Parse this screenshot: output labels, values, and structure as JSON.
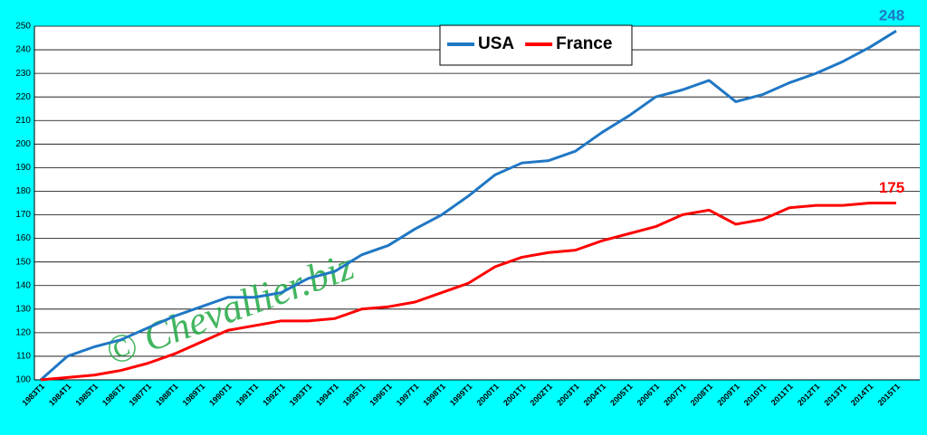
{
  "chart_data": {
    "type": "line",
    "categories": [
      "1983T1",
      "1984T1",
      "1985T1",
      "1986T1",
      "1987T1",
      "1988T1",
      "1989T1",
      "1990T1",
      "1991T1",
      "1992T1",
      "1993T1",
      "1994T1",
      "1995T1",
      "1996T1",
      "1997T1",
      "1998T1",
      "1999T1",
      "2000T1",
      "2001T1",
      "2002T1",
      "2003T1",
      "2004T1",
      "2005T1",
      "2006T1",
      "2007T1",
      "2008T1",
      "2009T1",
      "2010T1",
      "2011T1",
      "2012T1",
      "2013T1",
      "2014T1",
      "2015T1"
    ],
    "series": [
      {
        "name": "USA",
        "color": "#1f77c4",
        "values": [
          100,
          110,
          114,
          117,
          122,
          127,
          131,
          135,
          135,
          137,
          143,
          146,
          153,
          157,
          164,
          170,
          178,
          187,
          192,
          193,
          197,
          205,
          212,
          220,
          223,
          227,
          218,
          221,
          226,
          230,
          235,
          241,
          248
        ]
      },
      {
        "name": "France",
        "color": "#ff0000",
        "values": [
          100,
          101,
          102,
          104,
          107,
          111,
          116,
          121,
          123,
          125,
          125,
          126,
          130,
          131,
          133,
          137,
          141,
          148,
          152,
          154,
          155,
          159,
          162,
          165,
          170,
          172,
          166,
          168,
          173,
          174,
          174,
          175,
          175
        ]
      }
    ],
    "ylim": [
      100,
      250
    ],
    "yticks": [
      100,
      110,
      120,
      130,
      140,
      150,
      160,
      170,
      180,
      190,
      200,
      210,
      220,
      230,
      240,
      250
    ],
    "grid": true,
    "legend": "top",
    "annotations": [
      {
        "text": "248",
        "color": "#1f77c4"
      },
      {
        "text": "175",
        "color": "#ff0000"
      },
      {
        "text": "© Chevallier.biz",
        "color": "#22aa44"
      }
    ]
  }
}
